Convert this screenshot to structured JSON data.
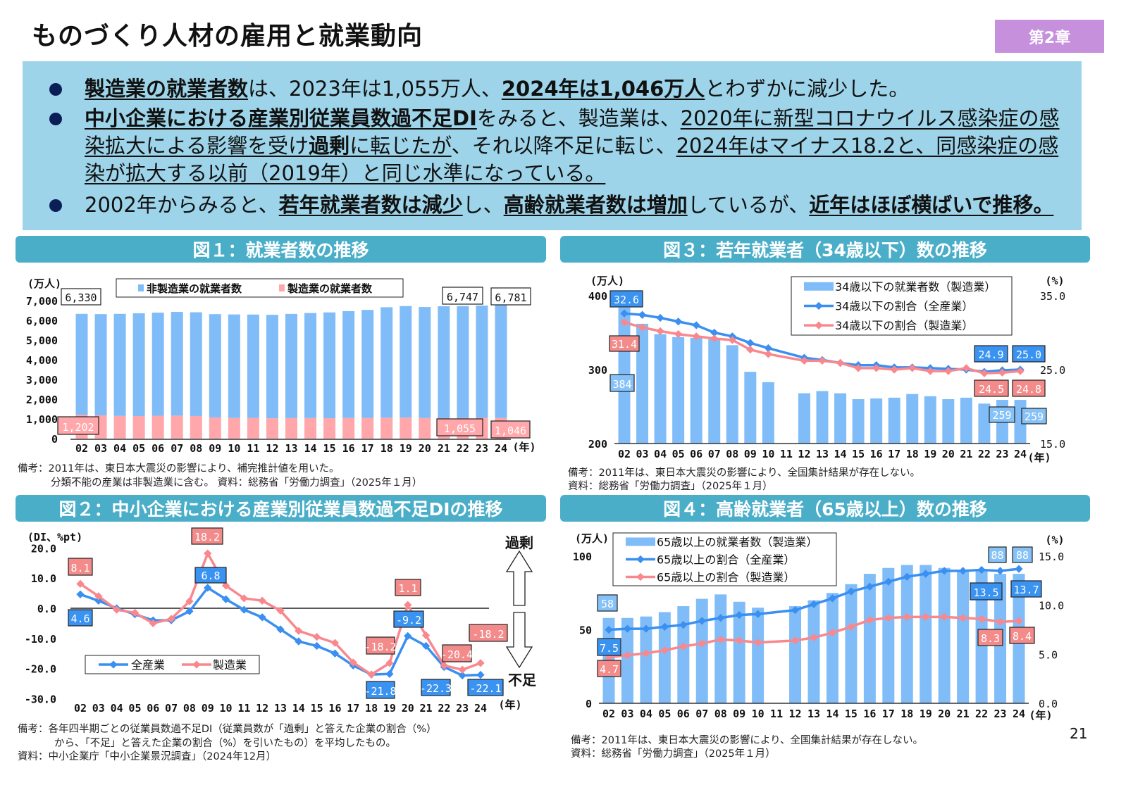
{
  "header": {
    "title": "ものづくり人材の雇用と就業動向",
    "chapter_badge": "第2章"
  },
  "summary": {
    "bullets": [
      {
        "segments": [
          {
            "text": "製造業の就業者数",
            "bold": true,
            "underline": true
          },
          {
            "text": "は、2023年は1,055万人、"
          },
          {
            "text": "2024年は1,046万人",
            "bold": true,
            "underline": true
          },
          {
            "text": "とわずかに減少した。"
          }
        ]
      },
      {
        "segments": [
          {
            "text": "中小企業における産業別従業員数過不足DI",
            "bold": true,
            "underline": true
          },
          {
            "text": "をみると、製造業は、"
          },
          {
            "text": "2020年に新型コロナウイルス感染症の感染拡大による影響を受け",
            "underline": true
          },
          {
            "text": "過剰",
            "bold": true,
            "underline": true
          },
          {
            "text": "に転じたが",
            "underline": true
          },
          {
            "text": "、それ以降不足に転じ、"
          },
          {
            "text": "2024年はマイナス18.2と、同感染症の感染が拡大する以前（2019年）と同じ水準になっている。",
            "underline": true
          }
        ]
      },
      {
        "segments": [
          {
            "text": "2002年からみると、"
          },
          {
            "text": "若年就業者数は減少",
            "bold": true,
            "underline": true
          },
          {
            "text": "し、"
          },
          {
            "text": "高齢就業者数は増加",
            "bold": true,
            "underline": true
          },
          {
            "text": "しているが、"
          },
          {
            "text": "近年はほぼ横ばいで推移。",
            "bold": true,
            "underline": true
          }
        ]
      }
    ]
  },
  "colors": {
    "bar_blue": "#80bdf8",
    "bar_pink": "#ffa7aa",
    "line_blue": "#3a8ff0",
    "line_red": "#f8888e",
    "header_teal": "#4aaec8",
    "summary_bg": "#9dd4e9",
    "badge": "#c690dc"
  },
  "figures": {
    "fig1": {
      "title": "図１：就業者数の推移",
      "notes": [
        "備考：2011年は、東日本大震災の影響により、補完推計値を用いた。",
        "分類不能の産業は非製造業に含む。 資料：総務省「労働力調査」（2025年１月）"
      ]
    },
    "fig2": {
      "title": "図２：中小企業における産業別従業員数過不足DIの推移",
      "notes": [
        "備考：各年四半期ごとの従業員数過不足DI（従業員数が「過剰」と答えた企業の割合（%）",
        "から、「不足」と答えた企業の割合（%）を引いたもの）を平均したもの。",
        "資料：中小企業庁「中小企業景況調査」（2024年12月）"
      ],
      "arrow_up_label": "過剰",
      "arrow_down_label": "不足"
    },
    "fig3": {
      "title": "図３：若年就業者（34歳以下）数の推移",
      "notes": [
        "備考：2011年は、東日本大震災の影響により、全国集計結果が存在しない。",
        "資料：総務省「労働力調査」（2025年１月）"
      ]
    },
    "fig4": {
      "title": "図４：高齢就業者（65歳以上）数の推移",
      "notes": [
        "備考：2011年は、東日本大震災の影響により、全国集計結果が存在しない。",
        "資料：総務省「労働力調査」（2025年１月）"
      ]
    }
  },
  "page_number": "21",
  "chart_data": [
    {
      "id": "fig1",
      "type": "bar",
      "stacked": true,
      "categories": [
        "02",
        "03",
        "04",
        "05",
        "06",
        "07",
        "08",
        "09",
        "10",
        "11",
        "12",
        "13",
        "14",
        "15",
        "16",
        "17",
        "18",
        "19",
        "20",
        "21",
        "22",
        "23",
        "24"
      ],
      "xlabel": "(年)",
      "ylabel": "(万人)",
      "ylim": [
        0,
        7000
      ],
      "yticks": [
        "0",
        "1,000",
        "2,000",
        "3,000",
        "4,000",
        "5,000",
        "6,000",
        "7,000"
      ],
      "legend_position": "top",
      "series": [
        {
          "name": "製造業の就業者数",
          "color": "#ffa7aa",
          "values": [
            1202,
            1178,
            1150,
            1142,
            1161,
            1165,
            1144,
            1073,
            1049,
            1049,
            1032,
            1039,
            1040,
            1035,
            1045,
            1052,
            1060,
            1063,
            1045,
            1037,
            1044,
            1055,
            1046
          ]
        },
        {
          "name": "非製造業の就業者数",
          "color": "#80bdf8",
          "values": [
            5128,
            5138,
            5179,
            5214,
            5228,
            5262,
            5265,
            5241,
            5249,
            5244,
            5248,
            5287,
            5331,
            5366,
            5420,
            5478,
            5604,
            5661,
            5631,
            5676,
            5679,
            5692,
            5735
          ]
        }
      ],
      "labels": [
        {
          "text": "6,330",
          "kind": "total"
        },
        {
          "text": "6,747",
          "kind": "total"
        },
        {
          "text": "6,781",
          "kind": "total"
        },
        {
          "text": "1,202",
          "kind": "mfg"
        },
        {
          "text": "1,055",
          "kind": "mfg"
        },
        {
          "text": "1,046",
          "kind": "mfg"
        }
      ]
    },
    {
      "id": "fig2",
      "type": "line",
      "categories": [
        "02",
        "03",
        "04",
        "05",
        "06",
        "07",
        "08",
        "09",
        "10",
        "11",
        "12",
        "13",
        "14",
        "15",
        "16",
        "17",
        "18",
        "19",
        "20",
        "21",
        "22",
        "23",
        "24"
      ],
      "xlabel": "(年)",
      "ylabel": "(DI、%pt)",
      "ylim": [
        -30,
        20
      ],
      "yticks": [
        "20.0",
        "10.0",
        "0.0",
        "-10.0",
        "-20.0",
        "-30.0"
      ],
      "legend_position": "bottom-left",
      "series": [
        {
          "name": "全産業",
          "color": "#3a8ff0",
          "values": [
            4.6,
            2.5,
            0,
            -2,
            -4,
            -4,
            -1,
            6.8,
            3,
            -0.5,
            -3,
            -7,
            -11,
            -12.5,
            -15,
            -19,
            -22,
            -21.8,
            -9.2,
            -12.5,
            -19.5,
            -22.3,
            -22.1
          ]
        },
        {
          "name": "製造業",
          "color": "#f8888e",
          "values": [
            8.1,
            4,
            -0.5,
            -1.5,
            -5,
            -3.5,
            2.3,
            18.2,
            7.5,
            3.3,
            2.5,
            -0.8,
            -7.5,
            -9.5,
            -11.5,
            -18,
            -22,
            -18.2,
            1.1,
            -9,
            -19,
            -20.4,
            -18.2
          ]
        }
      ],
      "labels": [
        {
          "text": "8.1",
          "kind": "red"
        },
        {
          "text": "18.2",
          "kind": "red"
        },
        {
          "text": "6.8",
          "kind": "blue"
        },
        {
          "text": "4.6",
          "kind": "blue"
        },
        {
          "text": "1.1",
          "kind": "red"
        },
        {
          "text": "-9.2",
          "kind": "blue"
        },
        {
          "text": "-18.2",
          "kind": "red"
        },
        {
          "text": "-18.2",
          "kind": "red"
        },
        {
          "text": "-20.4",
          "kind": "red"
        },
        {
          "text": "-21.8",
          "kind": "blue"
        },
        {
          "text": "-22.3",
          "kind": "blue"
        },
        {
          "text": "-22.1",
          "kind": "blue"
        }
      ]
    },
    {
      "id": "fig3",
      "type": "bar+line",
      "categories": [
        "02",
        "03",
        "04",
        "05",
        "06",
        "07",
        "08",
        "09",
        "10",
        "11",
        "12",
        "13",
        "14",
        "15",
        "16",
        "17",
        "18",
        "19",
        "20",
        "21",
        "22",
        "23",
        "24"
      ],
      "xlabel": "(年)",
      "ylabel": "(万人)",
      "y2label": "(%)",
      "ylim": [
        200,
        400
      ],
      "y2lim": [
        15,
        35
      ],
      "yticks": [
        "200",
        "300",
        "400"
      ],
      "y2ticks": [
        "15.0",
        "25.0",
        "35.0"
      ],
      "legend_position": "top-right",
      "series": [
        {
          "name": "34歳以下の就業者数（製造業）",
          "kind": "bar",
          "axis": "left",
          "color": "#80bdf8",
          "values": [
            384,
            362,
            348,
            344,
            343,
            341,
            333,
            297,
            283,
            null,
            268,
            271,
            268,
            260,
            261,
            262,
            267,
            264,
            260,
            262,
            254,
            259,
            259
          ]
        },
        {
          "name": "34歳以下の割合（全産業）",
          "kind": "line",
          "axis": "right",
          "color": "#3a8ff0",
          "values": [
            32.6,
            32.4,
            32.0,
            31.5,
            31.0,
            30.0,
            29.5,
            28.6,
            27.9,
            null,
            26.6,
            26.3,
            25.9,
            25.6,
            25.6,
            25.3,
            25.3,
            25.2,
            25.1,
            25.0,
            24.7,
            24.9,
            25.0
          ]
        },
        {
          "name": "34歳以下の割合（製造業）",
          "kind": "line",
          "axis": "right",
          "color": "#f8888e",
          "values": [
            31.4,
            30.7,
            30.2,
            29.8,
            29.5,
            29.2,
            29.0,
            27.7,
            27.1,
            null,
            26.2,
            26.2,
            25.9,
            25.2,
            25.2,
            25.0,
            25.2,
            24.8,
            24.8,
            25.2,
            24.5,
            24.6,
            24.8
          ]
        }
      ],
      "labels": [
        {
          "text": "32.6",
          "kind": "blue"
        },
        {
          "text": "31.4",
          "kind": "red"
        },
        {
          "text": "384",
          "kind": "bar"
        },
        {
          "text": "24.9",
          "kind": "blue"
        },
        {
          "text": "25.0",
          "kind": "blue"
        },
        {
          "text": "24.5",
          "kind": "red"
        },
        {
          "text": "24.8",
          "kind": "red"
        },
        {
          "text": "259",
          "kind": "bar"
        },
        {
          "text": "259",
          "kind": "bar"
        }
      ]
    },
    {
      "id": "fig4",
      "type": "bar+line",
      "categories": [
        "02",
        "03",
        "04",
        "05",
        "06",
        "07",
        "08",
        "09",
        "10",
        "11",
        "12",
        "13",
        "14",
        "15",
        "16",
        "17",
        "18",
        "19",
        "20",
        "21",
        "22",
        "23",
        "24"
      ],
      "xlabel": "(年)",
      "ylabel": "(万人)",
      "y2label": "(%)",
      "ylim": [
        0,
        100
      ],
      "y2lim": [
        0,
        15
      ],
      "yticks": [
        "0",
        "50",
        "100"
      ],
      "y2ticks": [
        "0.0",
        "5.0",
        "10.0",
        "15.0"
      ],
      "legend_position": "top-left",
      "series": [
        {
          "name": "65歳以上の就業者数（製造業）",
          "kind": "bar",
          "axis": "left",
          "color": "#80bdf8",
          "values": [
            58,
            58,
            59,
            62,
            66,
            71,
            74,
            69,
            65,
            null,
            66,
            70,
            75,
            81,
            88,
            92,
            94,
            94,
            92,
            90,
            90,
            88,
            88
          ]
        },
        {
          "name": "65歳以上の割合（全産業）",
          "kind": "line",
          "axis": "right",
          "color": "#3a8ff0",
          "values": [
            7.5,
            7.6,
            7.6,
            7.8,
            8.0,
            8.4,
            8.7,
            9.0,
            9.1,
            null,
            9.5,
            10.1,
            10.7,
            11.4,
            11.9,
            12.4,
            12.9,
            13.2,
            13.5,
            13.5,
            13.6,
            13.5,
            13.7
          ]
        },
        {
          "name": "65歳以上の割合（製造業）",
          "kind": "line",
          "axis": "right",
          "color": "#f8888e",
          "values": [
            4.7,
            4.9,
            5.1,
            5.4,
            5.8,
            6.1,
            6.5,
            6.4,
            6.2,
            null,
            6.4,
            6.7,
            7.2,
            7.8,
            8.5,
            8.7,
            8.8,
            8.8,
            8.8,
            8.7,
            8.6,
            8.3,
            8.4
          ]
        }
      ],
      "labels": [
        {
          "text": "58",
          "kind": "bar"
        },
        {
          "text": "7.5",
          "kind": "blue"
        },
        {
          "text": "4.7",
          "kind": "red"
        },
        {
          "text": "88",
          "kind": "bar"
        },
        {
          "text": "88",
          "kind": "bar"
        },
        {
          "text": "13.5",
          "kind": "blue"
        },
        {
          "text": "13.7",
          "kind": "blue"
        },
        {
          "text": "8.3",
          "kind": "red"
        },
        {
          "text": "8.4",
          "kind": "red"
        }
      ]
    }
  ]
}
